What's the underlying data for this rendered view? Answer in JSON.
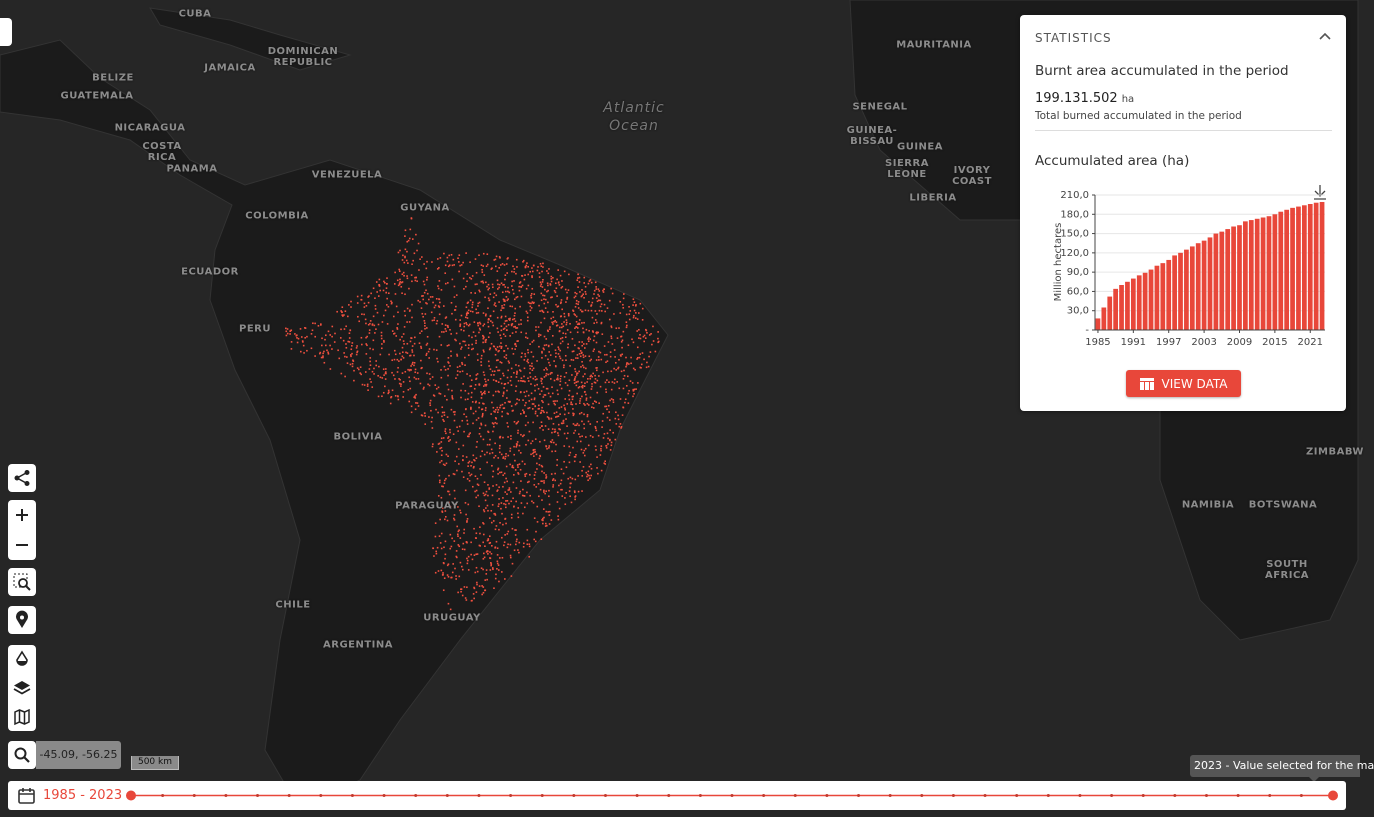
{
  "map": {
    "labels": [
      "CUBA",
      "JAMAICA",
      "DOMINICAN\nREPUBLIC",
      "BELIZE",
      "GUATEMALA",
      "NICARAGUA",
      "COSTA\nRICA",
      "PANAMA",
      "VENEZUELA",
      "GUYANA",
      "COLOMBIA",
      "ECUADOR",
      "PERU",
      "BOLIVIA",
      "PARAGUAY",
      "CHILE",
      "ARGENTINA",
      "URUGUAY",
      "Atlantic\nOcean",
      "MAURITANIA",
      "SENEGAL",
      "GUINEA-\nBISSAU",
      "GUINEA",
      "SIERRA\nLEONE",
      "IVORY\nCOAST",
      "LIBERIA",
      "NAMIBIA",
      "BOTSWANA",
      "SOUTH AFRICA",
      "ZIMBABW"
    ]
  },
  "toolbar": {
    "coordinates": "-45.09, -56.25",
    "scale": "500 km"
  },
  "statistics": {
    "header": "STATISTICS",
    "metric_title": "Burnt area accumulated in the period",
    "metric_value": "199.131.502",
    "metric_unit": "ha",
    "metric_caption": "Total burned accumulated in the period",
    "button": "VIEW DATA"
  },
  "chart_data": {
    "type": "bar",
    "title": "Accumulated area (ha)",
    "ylabel": "Million hectares",
    "color": "#e8473a",
    "categories": [
      "1985",
      null,
      null,
      null,
      null,
      null,
      "1991",
      null,
      null,
      null,
      null,
      null,
      "1997",
      null,
      null,
      null,
      null,
      null,
      "2003",
      null,
      null,
      null,
      null,
      null,
      "2009",
      null,
      null,
      null,
      null,
      null,
      "2015",
      null,
      null,
      null,
      null,
      null,
      "2021",
      null,
      null
    ],
    "values": [
      18,
      35,
      52,
      64,
      70,
      75,
      80,
      85,
      89,
      94,
      100,
      104,
      109,
      116,
      120,
      125,
      130,
      135,
      139,
      144,
      150,
      153,
      157,
      161,
      163,
      169,
      171,
      173,
      175,
      177,
      180,
      184,
      187,
      190,
      192,
      194,
      196,
      198,
      199.13
    ],
    "ylim": [
      0,
      210
    ],
    "yticks": [
      {
        "value": 0,
        "label": "-"
      },
      {
        "value": 30,
        "label": "30,0"
      },
      {
        "value": 60,
        "label": "60,0"
      },
      {
        "value": 90,
        "label": "90,0"
      },
      {
        "value": 120,
        "label": "120,0"
      },
      {
        "value": 150,
        "label": "150,0"
      },
      {
        "value": 180,
        "label": "180,0"
      },
      {
        "value": 210,
        "label": "210,0"
      }
    ],
    "grid": true
  },
  "timeline": {
    "range": "1985 - 2023",
    "tooltip": "2023 - Value selected for the ma"
  }
}
